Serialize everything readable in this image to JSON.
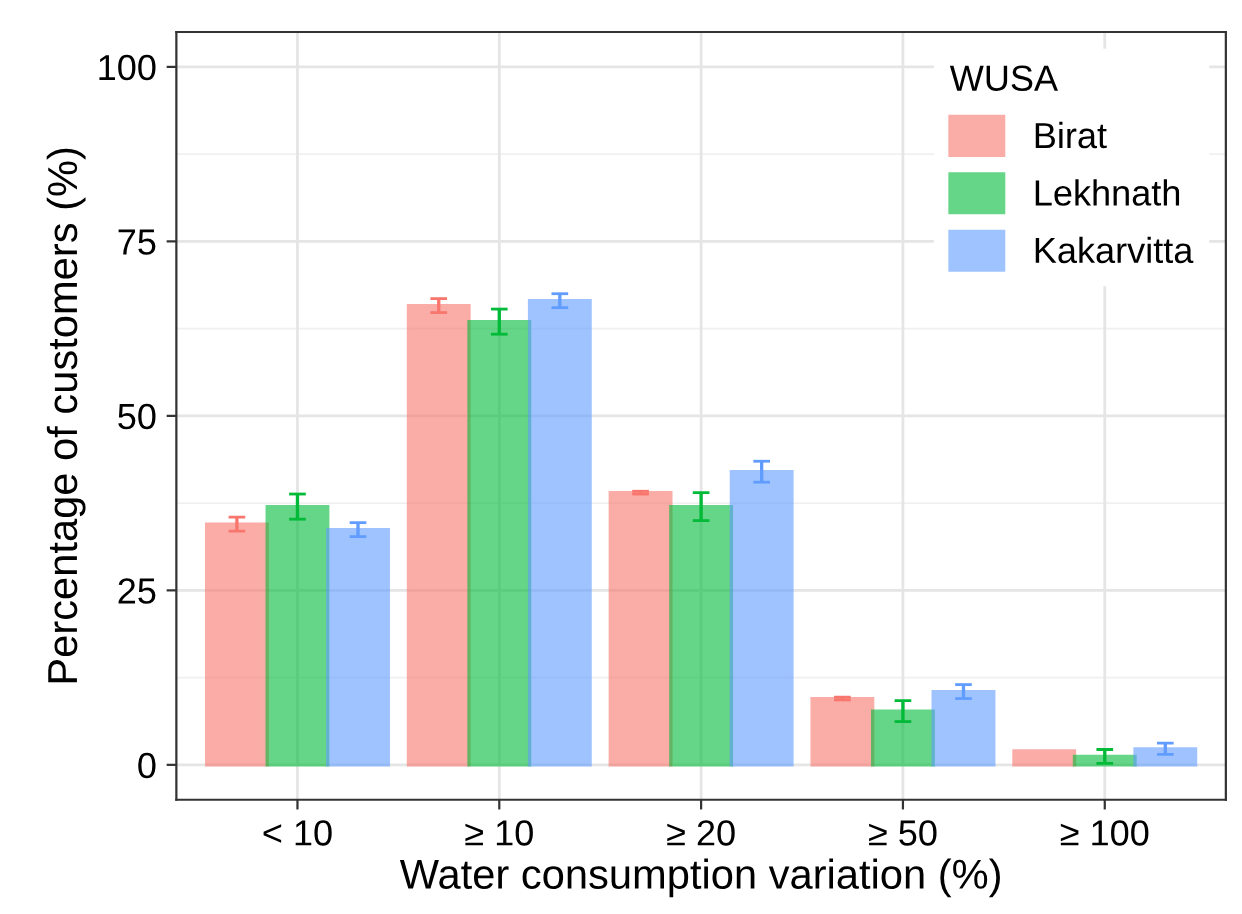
{
  "chart_data": {
    "type": "bar",
    "xlabel": "Water consumption variation (%)",
    "ylabel": "Percentage of customers (%)",
    "legend_title": "WUSA",
    "categories": [
      "< 10",
      "≥ 10",
      "≥ 20",
      "≥ 50",
      "≥ 100"
    ],
    "series": [
      {
        "name": "Birat",
        "color": "#f8766d",
        "values": [
          34.5,
          65.8,
          39,
          9.5,
          2
        ],
        "errors": [
          1,
          1,
          0.2,
          0.2,
          null
        ]
      },
      {
        "name": "Lekhnath",
        "color": "#00ba38",
        "values": [
          37,
          63.5,
          37,
          7.7,
          1.2
        ],
        "errors": [
          1.8,
          1.8,
          2,
          1.5,
          1
        ]
      },
      {
        "name": "Kakarvitta",
        "color": "#619cff",
        "values": [
          33.7,
          66.5,
          42,
          10.5,
          2.3
        ],
        "errors": [
          1,
          1,
          1.5,
          1,
          0.8
        ]
      }
    ],
    "ylim": [
      -5,
      105
    ],
    "yticks": [
      0,
      25,
      50,
      75,
      100
    ],
    "grid": true,
    "legend": "top right"
  }
}
